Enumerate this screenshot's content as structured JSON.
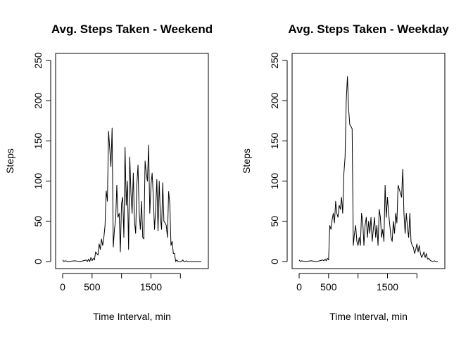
{
  "chart_data": [
    {
      "type": "line",
      "title": "Avg. Steps Taken - Weekend",
      "xlabel": "Time Interval, min",
      "ylabel": "Steps",
      "xlim": [
        0,
        2355
      ],
      "ylim": [
        0,
        250
      ],
      "x_ticks": [
        0,
        500,
        1500
      ],
      "x_tick_marks": [
        0,
        500,
        1000,
        1500,
        2000
      ],
      "y_ticks": [
        0,
        50,
        100,
        150,
        200,
        250
      ],
      "grid": false,
      "line_color": "#000000",
      "series": [
        {
          "x": [
            0,
            20,
            40,
            100,
            200,
            300,
            400,
            420,
            440,
            460,
            480,
            500,
            520,
            540,
            560,
            600,
            620,
            640,
            660,
            680,
            700,
            720,
            740,
            760,
            780,
            800,
            820,
            840,
            860,
            880,
            900,
            920,
            940,
            960,
            980,
            1000,
            1020,
            1040,
            1060,
            1080,
            1100,
            1120,
            1140,
            1160,
            1180,
            1200,
            1220,
            1240,
            1260,
            1280,
            1300,
            1320,
            1340,
            1360,
            1380,
            1400,
            1420,
            1440,
            1460,
            1480,
            1500,
            1520,
            1540,
            1560,
            1580,
            1600,
            1620,
            1640,
            1660,
            1680,
            1700,
            1720,
            1740,
            1760,
            1780,
            1800,
            1820,
            1840,
            1860,
            1880,
            1900,
            1920,
            1940,
            1960,
            1980,
            2000,
            2020,
            2040,
            2060,
            2080,
            2100,
            2120,
            2140,
            2160,
            2180,
            2200,
            2220,
            2240,
            2260,
            2280,
            2300,
            2320,
            2340,
            2355
          ],
          "values": [
            2,
            0,
            1,
            0,
            1,
            0,
            2,
            0,
            3,
            0,
            5,
            1,
            4,
            2,
            12,
            8,
            22,
            15,
            28,
            20,
            30,
            45,
            88,
            75,
            162,
            140,
            118,
            166,
            18,
            40,
            52,
            95,
            55,
            60,
            12,
            72,
            80,
            30,
            142,
            70,
            100,
            15,
            130,
            85,
            60,
            110,
            50,
            35,
            95,
            120,
            60,
            40,
            75,
            30,
            28,
            125,
            110,
            100,
            145,
            60,
            95,
            110,
            80,
            40,
            65,
            102,
            38,
            100,
            55,
            40,
            98,
            50,
            48,
            45,
            30,
            87,
            72,
            20,
            25,
            10,
            10,
            0,
            2,
            0,
            0,
            0,
            0,
            2,
            0,
            0,
            1,
            0,
            0,
            0,
            0,
            0,
            0,
            0,
            0,
            0,
            0,
            0,
            0,
            0
          ]
        }
      ]
    },
    {
      "type": "line",
      "title": "Avg. Steps Taken - Weekday",
      "xlabel": "Time Interval, min",
      "ylabel": "Steps",
      "xlim": [
        0,
        2355
      ],
      "ylim": [
        0,
        250
      ],
      "x_ticks": [
        0,
        500,
        1500
      ],
      "x_tick_marks": [
        0,
        500,
        1000,
        1500,
        2000
      ],
      "y_ticks": [
        0,
        50,
        100,
        150,
        200,
        250
      ],
      "grid": false,
      "line_color": "#000000",
      "series": [
        {
          "x": [
            0,
            20,
            40,
            100,
            200,
            300,
            400,
            420,
            440,
            460,
            480,
            500,
            520,
            540,
            560,
            580,
            600,
            620,
            640,
            660,
            680,
            700,
            720,
            740,
            760,
            780,
            800,
            820,
            840,
            860,
            880,
            900,
            920,
            940,
            960,
            980,
            1000,
            1020,
            1040,
            1060,
            1080,
            1100,
            1120,
            1140,
            1160,
            1180,
            1200,
            1220,
            1240,
            1260,
            1280,
            1300,
            1320,
            1340,
            1360,
            1380,
            1400,
            1420,
            1440,
            1460,
            1480,
            1500,
            1520,
            1540,
            1560,
            1580,
            1600,
            1620,
            1640,
            1660,
            1680,
            1700,
            1720,
            1740,
            1760,
            1780,
            1800,
            1820,
            1840,
            1860,
            1880,
            1900,
            1920,
            1940,
            1960,
            1980,
            2000,
            2020,
            2040,
            2060,
            2080,
            2100,
            2120,
            2140,
            2160,
            2180,
            2200,
            2220,
            2240,
            2260,
            2280,
            2300,
            2320,
            2355
          ],
          "values": [
            2,
            0,
            1,
            0,
            1,
            0,
            2,
            1,
            3,
            1,
            4,
            2,
            45,
            40,
            52,
            60,
            48,
            75,
            60,
            55,
            70,
            65,
            80,
            60,
            110,
            130,
            200,
            230,
            190,
            170,
            168,
            165,
            20,
            35,
            45,
            25,
            20,
            30,
            20,
            60,
            50,
            20,
            45,
            55,
            30,
            50,
            35,
            55,
            25,
            40,
            55,
            30,
            45,
            20,
            65,
            55,
            30,
            40,
            25,
            95,
            55,
            80,
            60,
            45,
            30,
            25,
            50,
            35,
            60,
            48,
            95,
            90,
            85,
            80,
            115,
            60,
            35,
            60,
            42,
            30,
            60,
            25,
            20,
            18,
            10,
            15,
            22,
            12,
            20,
            10,
            5,
            8,
            12,
            5,
            10,
            3,
            4,
            2,
            1,
            0,
            0,
            1,
            0,
            0
          ]
        }
      ]
    }
  ]
}
